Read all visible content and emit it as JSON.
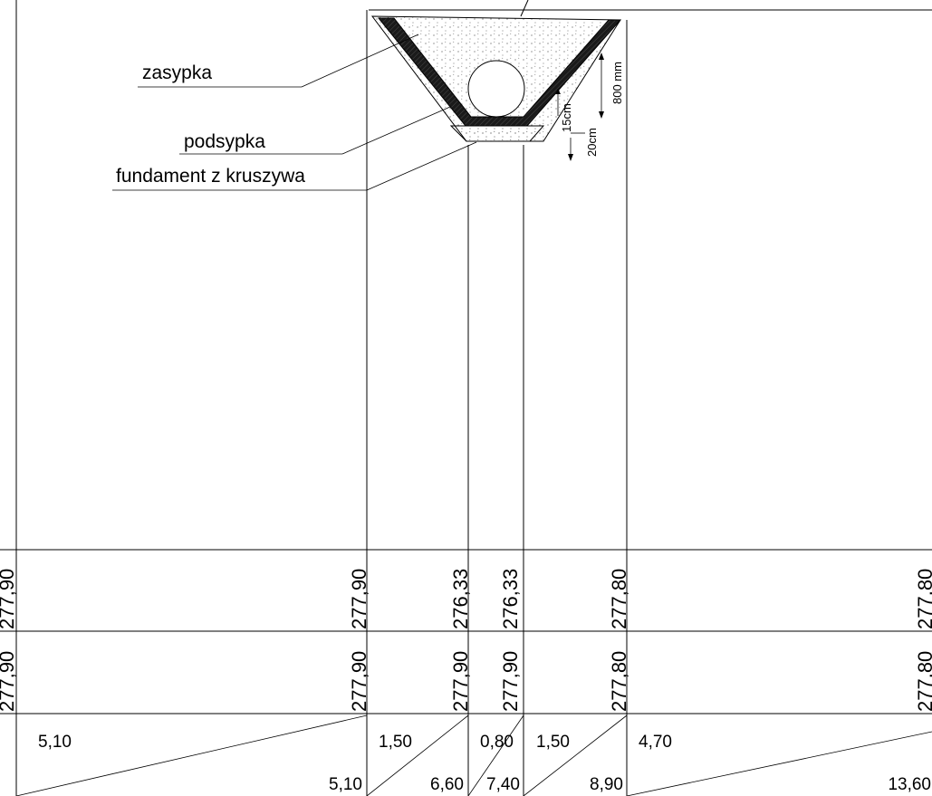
{
  "labels": {
    "backfill": "zasypka",
    "bedding": "podsypka",
    "foundation": "fundament z kruszywa",
    "dim_pipe": "800 mm",
    "dim_bedding": "15cm",
    "dim_foundation": "20cm"
  },
  "table": {
    "row1": [
      "277,90",
      "277,90",
      "276,33",
      "276,33",
      "277,80",
      "277,80"
    ],
    "row2": [
      "277,90",
      "277,90",
      "277,90",
      "277,90",
      "277,80",
      "277,80"
    ],
    "segments": [
      "5,10",
      "1,50",
      "0,80",
      "1,50",
      "4,70"
    ],
    "cumulative": [
      "5,10",
      "6,60",
      "7,40",
      "8,90",
      "13,60"
    ]
  },
  "colors": {
    "line": "#000000",
    "bedding_fill": "#1a1a1a",
    "backfill_dots": "#555555"
  }
}
